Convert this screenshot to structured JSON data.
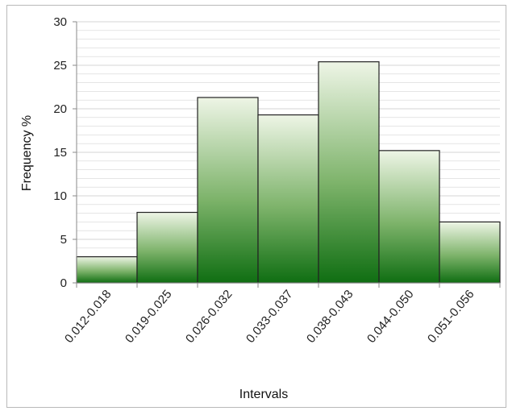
{
  "chart_data": {
    "type": "bar",
    "title": "",
    "xlabel": "Intervals",
    "ylabel": "Frequency %",
    "categories": [
      "0.012-0.018",
      "0.019-0.025",
      "0.026-0.032",
      "0.033-0.037",
      "0.038-0.043",
      "0.044-0.050",
      "0.051-0.056"
    ],
    "values": [
      3,
      8.1,
      21.3,
      19.3,
      25.4,
      15.2,
      7
    ],
    "ylim": [
      0,
      30
    ],
    "yticks": [
      "0",
      "5",
      "10",
      "15",
      "20",
      "25",
      "30"
    ],
    "grid": true,
    "legend": "none",
    "colors": {
      "bar_top": "#eef5e6",
      "bar_bottom": "#0f6e12",
      "bar_stroke": "#222222",
      "grid": "#d6d6d6",
      "axis": "#8a8a8a"
    }
  }
}
